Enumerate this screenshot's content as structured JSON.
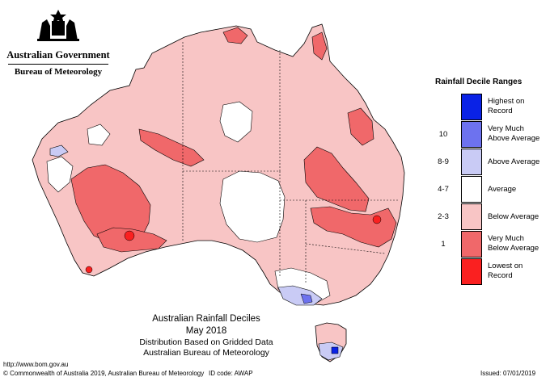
{
  "agency": {
    "government": "Australian Government",
    "bureau": "Bureau of Meteorology",
    "crest_icon": "commonwealth-coat-of-arms-icon"
  },
  "map": {
    "title": "Australian Rainfall Deciles",
    "period": "May 2018",
    "subtitle_1": "Distribution Based on Gridded Data",
    "subtitle_2": "Australian Bureau of Meteorology"
  },
  "legend": {
    "title": "Rainfall Decile Ranges",
    "items": [
      {
        "range": "",
        "label": "Highest on\nRecord",
        "color": "#0a22e6"
      },
      {
        "range": "10",
        "label": "Very Much\nAbove Average",
        "color": "#6d72ef"
      },
      {
        "range": "8-9",
        "label": "Above Average",
        "color": "#c9cbf5"
      },
      {
        "range": "4-7",
        "label": "Average",
        "color": "#ffffff"
      },
      {
        "range": "2-3",
        "label": "Below Average",
        "color": "#f8c5c5"
      },
      {
        "range": "1",
        "label": "Very Much\nBelow Average",
        "color": "#f0686a"
      },
      {
        "range": "",
        "label": "Lowest on\nRecord",
        "color": "#fa2020"
      }
    ]
  },
  "footer": {
    "url": "http://www.bom.gov.au",
    "copyright": "© Commonwealth of Australia 2019, Australian Bureau of Meteorology",
    "id_code": "ID code: AWAP",
    "issued": "Issued: 07/01/2019"
  }
}
